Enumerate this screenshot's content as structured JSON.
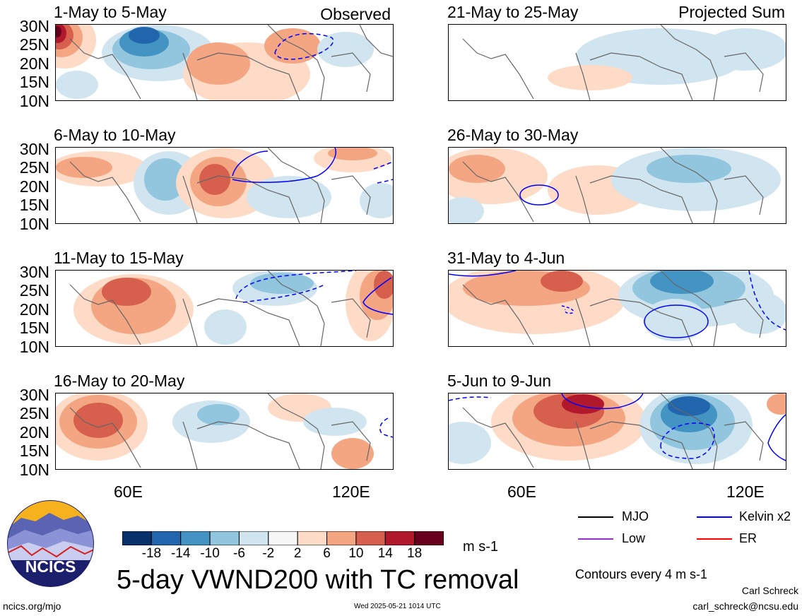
{
  "panels": [
    {
      "title": "1-May to 5-May",
      "tag": "Observed"
    },
    {
      "title": "6-May to 10-May",
      "tag": ""
    },
    {
      "title": "11-May to 15-May",
      "tag": ""
    },
    {
      "title": "16-May to 20-May",
      "tag": ""
    },
    {
      "title": "21-May to 25-May",
      "tag": "Projected Sum"
    },
    {
      "title": "26-May to 30-May",
      "tag": ""
    },
    {
      "title": "31-May to 4-Jun",
      "tag": ""
    },
    {
      "title": "5-Jun to 9-Jun",
      "tag": ""
    }
  ],
  "lat_labels": [
    "30N",
    "25N",
    "20N",
    "15N",
    "10N"
  ],
  "lon_labels": [
    "60E",
    "120E"
  ],
  "colorbar": {
    "labels": [
      "-18",
      "-14",
      "-10",
      "-6",
      "-2",
      "2",
      "6",
      "10",
      "14",
      "18"
    ],
    "colors": [
      "#08306b",
      "#2166ac",
      "#4393c3",
      "#92c5de",
      "#d1e5f0",
      "#f7f7f7",
      "#fddbc7",
      "#f4a582",
      "#d6604d",
      "#b2182b",
      "#67001f"
    ],
    "units": "m s-1"
  },
  "legend": {
    "items": [
      {
        "label": "MJO",
        "color": "#000000"
      },
      {
        "label": "Kelvin x2",
        "color": "#0000ff"
      },
      {
        "label": "Low",
        "color": "#9932cc"
      },
      {
        "label": "ER",
        "color": "#ff0000"
      }
    ],
    "contours_note": "Contours every 4 m s-1"
  },
  "main_title": "5-day VWND200 with TC removal",
  "logo_text": "NCICS",
  "footer": {
    "url": "ncics.org/mjo",
    "timestamp": "Wed 2025-05-21 1014 UTC",
    "author": "Carl Schreck",
    "email": "carl_schreck@ncsu.edu"
  }
}
